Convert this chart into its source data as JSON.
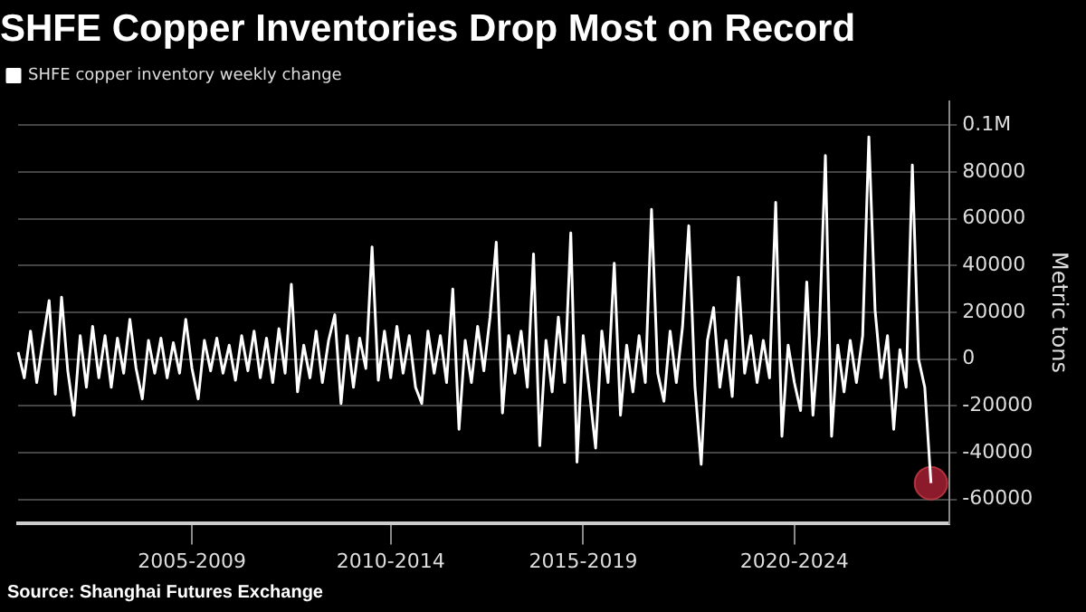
{
  "chart_data": {
    "type": "line",
    "title": "SHFE Copper Inventories Drop Most on Record",
    "ylabel": "Metric tons",
    "annotations": [
      "Source: Shanghai Futures Exchange"
    ],
    "categories": [
      null,
      null,
      null,
      null,
      null,
      null,
      null,
      null,
      null,
      null,
      null,
      null,
      null,
      null,
      null,
      null,
      null,
      null,
      null,
      null,
      null,
      null,
      null,
      null,
      null,
      null,
      null,
      null,
      "2005-2009",
      null,
      null,
      null,
      null,
      null,
      null,
      null,
      null,
      null,
      null,
      null,
      null,
      null,
      null,
      null,
      null,
      null,
      null,
      null,
      null,
      null,
      null,
      null,
      null,
      null,
      null,
      null,
      null,
      null,
      null,
      null,
      "2010-2014",
      null,
      null,
      null,
      null,
      null,
      null,
      null,
      null,
      null,
      null,
      null,
      null,
      null,
      null,
      null,
      null,
      null,
      null,
      null,
      null,
      null,
      null,
      null,
      null,
      null,
      null,
      null,
      null,
      null,
      null,
      "2015-2019",
      null,
      null,
      null,
      null,
      null,
      null,
      null,
      null,
      null,
      null,
      null,
      null,
      null,
      null,
      null,
      null,
      null,
      null,
      null,
      null,
      null,
      null,
      null,
      null,
      null,
      null,
      null,
      null,
      null,
      null,
      null,
      null,
      null,
      "2020-2024",
      null,
      null,
      null,
      null,
      null,
      null,
      null,
      null,
      null,
      null,
      null,
      null,
      null,
      null,
      null,
      null,
      null,
      null,
      null,
      null,
      null,
      null,
      null,
      null,
      null
    ],
    "ylim": [
      -70000,
      110000
    ],
    "yticks": [
      -60000,
      -40000,
      -20000,
      0,
      20000,
      40000,
      60000,
      80000,
      {
        "value": 100000,
        "label": "0.1M"
      }
    ],
    "grid": "y",
    "legend": "top left",
    "marker": "none",
    "line_style": "solid",
    "series": [
      {
        "name": "SHFE copper inventory weekly change",
        "color": "#ffffff",
        "values": [
          3000,
          -8000,
          12000,
          -10000,
          8000,
          25000,
          -15000,
          26500,
          -5000,
          -24000,
          10000,
          -12000,
          14000,
          -8000,
          10000,
          -12000,
          9000,
          -6000,
          17000,
          -4000,
          -17000,
          8000,
          -6000,
          9000,
          -8000,
          7000,
          -6000,
          17000,
          -4000,
          -17000,
          8000,
          -5000,
          9000,
          -6000,
          6000,
          -9000,
          10000,
          -5000,
          12000,
          -8000,
          9000,
          -10000,
          13000,
          -6000,
          32000,
          -14000,
          6000,
          -8000,
          12000,
          -10000,
          8000,
          19000,
          -19000,
          10000,
          -12000,
          9000,
          -4000,
          48000,
          -9000,
          12000,
          -8000,
          14000,
          -6000,
          10000,
          -12000,
          -19000,
          12000,
          -6000,
          10000,
          -10000,
          30000,
          -30000,
          8000,
          -10000,
          14000,
          -5000,
          18000,
          50000,
          -23000,
          10000,
          -6000,
          12000,
          -12000,
          45000,
          -37000,
          8000,
          -14000,
          18000,
          -10000,
          54000,
          -44000,
          10000,
          -14000,
          -38000,
          12000,
          -10000,
          41000,
          -24000,
          6000,
          -14000,
          10000,
          -10000,
          64000,
          -6000,
          -18000,
          12000,
          -10000,
          14000,
          57000,
          -12000,
          -45000,
          8000,
          22000,
          -12000,
          8000,
          -16000,
          35000,
          -6000,
          10000,
          -10000,
          8000,
          -8000,
          67000,
          -33000,
          6000,
          -10000,
          -22000,
          33000,
          -24000,
          10000,
          87000,
          -33000,
          6000,
          -14000,
          8000,
          -10000,
          10000,
          95000,
          21000,
          -8000,
          10000,
          -30000,
          4000,
          -12000,
          83000,
          0,
          -12000,
          -53000,
          null,
          null,
          null
        ]
      },
      {
        "type": "scatter",
        "color": "#8b1a2a",
        "marker": "circle",
        "values": [
          null,
          null,
          null,
          null,
          null,
          null,
          null,
          null,
          null,
          null,
          null,
          null,
          null,
          null,
          null,
          null,
          null,
          null,
          null,
          null,
          null,
          null,
          null,
          null,
          null,
          null,
          null,
          null,
          null,
          null,
          null,
          null,
          null,
          null,
          null,
          null,
          null,
          null,
          null,
          null,
          null,
          null,
          null,
          null,
          null,
          null,
          null,
          null,
          null,
          null,
          null,
          null,
          null,
          null,
          null,
          null,
          null,
          null,
          null,
          null,
          null,
          null,
          null,
          null,
          null,
          null,
          null,
          null,
          null,
          null,
          null,
          null,
          null,
          null,
          null,
          null,
          null,
          null,
          null,
          null,
          null,
          null,
          null,
          null,
          null,
          null,
          null,
          null,
          null,
          null,
          null,
          null,
          null,
          null,
          null,
          null,
          null,
          null,
          null,
          null,
          null,
          null,
          null,
          null,
          null,
          null,
          null,
          null,
          null,
          null,
          null,
          null,
          null,
          null,
          null,
          null,
          null,
          null,
          null,
          null,
          null,
          null,
          null,
          null,
          null,
          null,
          null,
          null,
          null,
          null,
          null,
          null,
          null,
          null,
          null,
          null,
          null,
          null,
          null,
          null,
          null,
          null,
          null,
          null,
          null,
          null,
          null,
          -53000,
          null,
          null,
          null
        ]
      }
    ]
  }
}
